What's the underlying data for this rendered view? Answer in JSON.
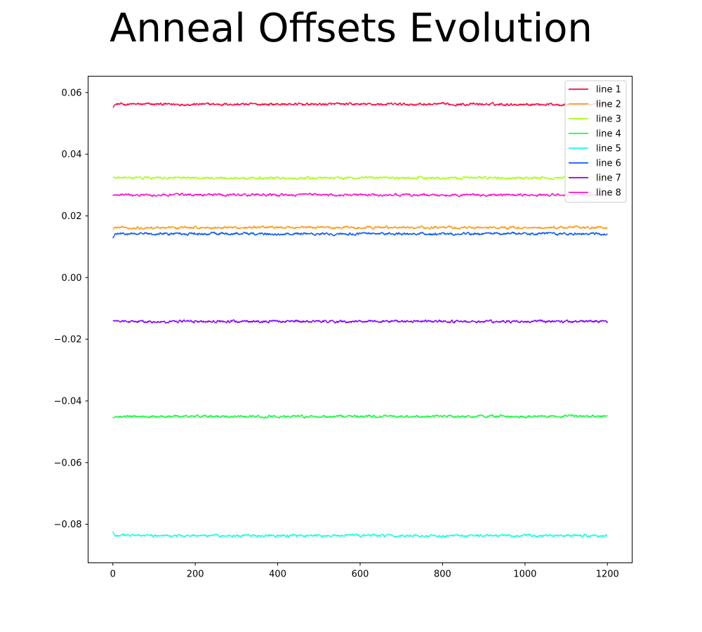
{
  "chart_data": {
    "type": "line",
    "title": "Anneal Offsets Evolution",
    "xlabel": "",
    "ylabel": "",
    "xlim": [
      -60,
      1260
    ],
    "ylim": [
      -0.0925,
      0.0653
    ],
    "x_range": [
      0,
      1200
    ],
    "x_ticks": [
      0,
      200,
      400,
      600,
      800,
      1000,
      1200
    ],
    "y_ticks": [
      -0.08,
      -0.06,
      -0.04,
      -0.02,
      0.0,
      0.02,
      0.04,
      0.06
    ],
    "y_tick_labels": [
      "−0.08",
      "−0.06",
      "−0.04",
      "−0.02",
      "0.00",
      "0.02",
      "0.04",
      "0.06"
    ],
    "legend_position": "top-right",
    "grid": false,
    "series": [
      {
        "name": "line 1",
        "color": "#ff0a3c",
        "mean": 0.0562,
        "start": 0.0553,
        "noise": 0.0003
      },
      {
        "name": "line 2",
        "color": "#ff9a1a",
        "mean": 0.0162,
        "start": 0.0158,
        "noise": 0.0003
      },
      {
        "name": "line 3",
        "color": "#a6ff1a",
        "mean": 0.0323,
        "start": 0.0326,
        "noise": 0.0003
      },
      {
        "name": "line 4",
        "color": "#14ff3c",
        "mean": -0.045,
        "start": -0.0455,
        "noise": 0.0003
      },
      {
        "name": "line 5",
        "color": "#14ffe6",
        "mean": -0.0837,
        "start": -0.0823,
        "noise": 0.0003
      },
      {
        "name": "line 6",
        "color": "#0a5aff",
        "mean": 0.0142,
        "start": 0.0128,
        "noise": 0.0003
      },
      {
        "name": "line 7",
        "color": "#8800ff",
        "mean": -0.0142,
        "start": -0.014,
        "noise": 0.0003
      },
      {
        "name": "line 8",
        "color": "#ff14c8",
        "mean": 0.0268,
        "start": 0.0265,
        "noise": 0.0003
      }
    ]
  }
}
